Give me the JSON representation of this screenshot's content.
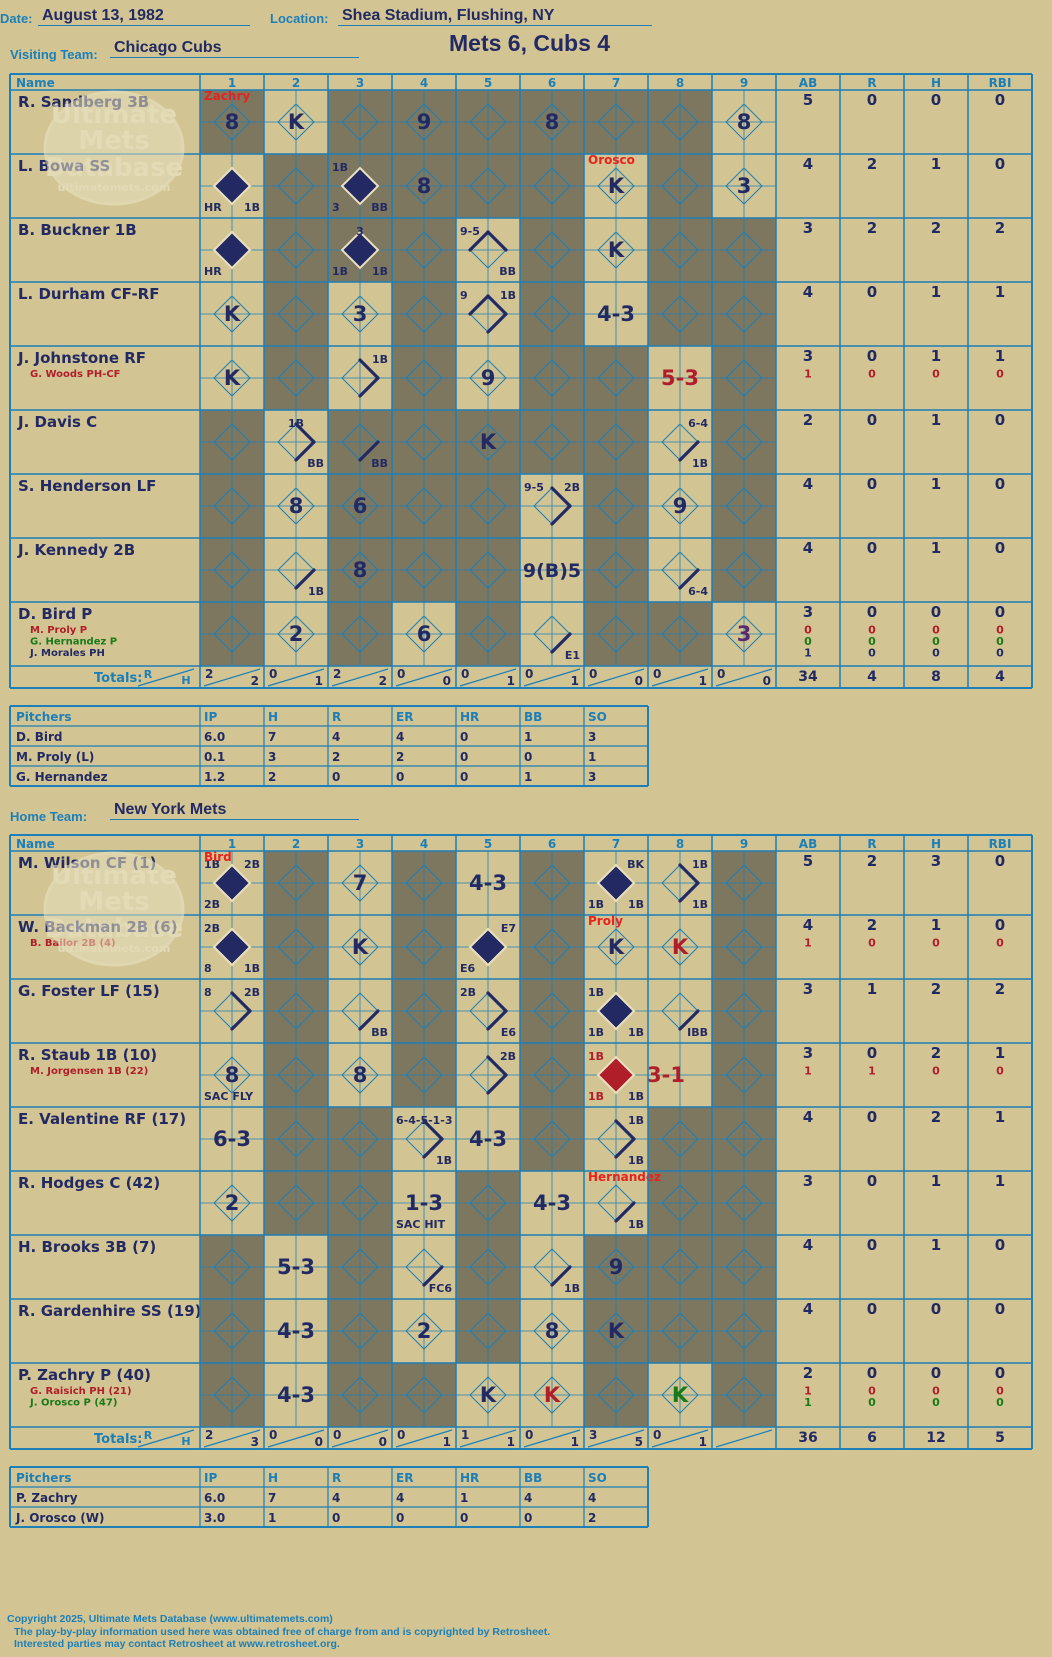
{
  "header": {
    "date_label": "Date:",
    "date": "August 13, 1982",
    "location_label": "Location:",
    "location": "Shea Stadium, Flushing, NY",
    "visiting_label": "Visiting Team:",
    "visiting_team": "Chicago Cubs",
    "home_label": "Home Team:",
    "home_team": "New York Mets",
    "title": "Mets 6, Cubs 4"
  },
  "watermark": {
    "line1": "Ultimate",
    "line2": "Mets",
    "line3": "Database",
    "url": "ultimatemets.com"
  },
  "colors": {
    "background": "#d2c593",
    "grid": "#1c7fb8",
    "shade": "#7d775f",
    "ink": "#232a63",
    "red": "#b01e2a",
    "green": "#197a19",
    "note": "#e8221c"
  },
  "columns": {
    "name": "Name",
    "innings": [
      "1",
      "2",
      "3",
      "4",
      "5",
      "6",
      "7",
      "8",
      "9"
    ],
    "stats": [
      "AB",
      "R",
      "H",
      "RBI"
    ],
    "totals_label": "Totals:",
    "r": "R",
    "h": "H"
  },
  "pitch_columns": [
    "Pitchers",
    "IP",
    "H",
    "R",
    "ER",
    "HR",
    "BB",
    "SO"
  ],
  "visitors": {
    "shade": [
      [
        1,
        3,
        4,
        5,
        6,
        7,
        8
      ],
      [
        2,
        3,
        4,
        5,
        6,
        8
      ],
      [
        2,
        3,
        4,
        6,
        8,
        9
      ],
      [
        2,
        4,
        6,
        8,
        9
      ],
      [
        2,
        4,
        6,
        7,
        9
      ],
      [
        1,
        3,
        4,
        5,
        6,
        7,
        9
      ],
      [
        1,
        3,
        4,
        5,
        7,
        9
      ],
      [
        1,
        3,
        4,
        5,
        7,
        9
      ],
      [
        1,
        3,
        5,
        7,
        8
      ]
    ],
    "rows": [
      {
        "name": "R. Sandberg 3B",
        "subs": [],
        "stats": [
          [
            "5",
            "0",
            "0",
            "0"
          ]
        ],
        "cells": [
          {
            "inn": 1,
            "c": "8",
            "note": "Zachry"
          },
          {
            "inn": 2,
            "c": "K"
          },
          {
            "inn": 4,
            "c": "9"
          },
          {
            "inn": 6,
            "c": "8"
          },
          {
            "inn": 9,
            "c": "8"
          }
        ]
      },
      {
        "name": "L. Bowa SS",
        "subs": [],
        "stats": [
          [
            "4",
            "2",
            "1",
            "0"
          ]
        ],
        "cells": [
          {
            "inn": 1,
            "d": "full",
            "bl": "HR",
            "br": "1B"
          },
          {
            "inn": 3,
            "d": "full",
            "tl": "1B",
            "bl": "3",
            "br": "BB"
          },
          {
            "inn": 4,
            "c": "8"
          },
          {
            "inn": 7,
            "c": "K",
            "note": "Orosco"
          },
          {
            "inn": 9,
            "c": "3"
          }
        ]
      },
      {
        "name": "B. Buckner 1B",
        "subs": [],
        "stats": [
          [
            "3",
            "2",
            "2",
            "2"
          ]
        ],
        "cells": [
          {
            "inn": 1,
            "d": "full",
            "bl": "HR"
          },
          {
            "inn": 3,
            "d": "full",
            "tc": "3",
            "bl": "1B",
            "br": "1B"
          },
          {
            "inn": 5,
            "d": "23",
            "tl": "9-5",
            "br": "BB"
          },
          {
            "inn": 7,
            "c": "K"
          }
        ]
      },
      {
        "name": "L. Durham CF-RF",
        "subs": [],
        "stats": [
          [
            "4",
            "0",
            "1",
            "1"
          ]
        ],
        "cells": [
          {
            "inn": 1,
            "c": "K"
          },
          {
            "inn": 3,
            "c": "3"
          },
          {
            "inn": 5,
            "d": "123",
            "tl": "9",
            "tr": "1B"
          },
          {
            "inn": 7,
            "c": "4-3"
          }
        ]
      },
      {
        "name": "J. Johnstone RF",
        "subs": [
          {
            "t": "G. Woods PH-CF",
            "col": "red"
          }
        ],
        "stats": [
          [
            "3",
            "0",
            "1",
            "1"
          ],
          [
            "1",
            "0",
            "0",
            "0",
            "red"
          ]
        ],
        "cells": [
          {
            "inn": 1,
            "c": "K"
          },
          {
            "inn": 3,
            "d": "12",
            "tr": "1B"
          },
          {
            "inn": 5,
            "c": "9"
          },
          {
            "inn": 8,
            "c": "5-3",
            "col": "red"
          }
        ]
      },
      {
        "name": "J. Davis C",
        "subs": [],
        "stats": [
          [
            "2",
            "0",
            "1",
            "0"
          ]
        ],
        "cells": [
          {
            "inn": 2,
            "d": "12",
            "tc": "1B",
            "br": "BB"
          },
          {
            "inn": 3,
            "d": "1",
            "br": "BB"
          },
          {
            "inn": 5,
            "c": "K"
          },
          {
            "inn": 8,
            "d": "1",
            "tr": "6-4",
            "br": "1B"
          }
        ]
      },
      {
        "name": "S. Henderson LF",
        "subs": [],
        "stats": [
          [
            "4",
            "0",
            "1",
            "0"
          ]
        ],
        "cells": [
          {
            "inn": 2,
            "c": "8"
          },
          {
            "inn": 3,
            "c": "6"
          },
          {
            "inn": 6,
            "d": "12",
            "tl": "9-5",
            "tr": "2B"
          },
          {
            "inn": 8,
            "c": "9"
          }
        ]
      },
      {
        "name": "J. Kennedy 2B",
        "subs": [],
        "stats": [
          [
            "4",
            "0",
            "1",
            "0"
          ]
        ],
        "cells": [
          {
            "inn": 2,
            "d": "1",
            "br": "1B"
          },
          {
            "inn": 3,
            "c": "8"
          },
          {
            "inn": 6,
            "c": "9(B)5"
          },
          {
            "inn": 8,
            "d": "1",
            "br": "6-4"
          }
        ]
      },
      {
        "name": "D. Bird P",
        "subs": [
          {
            "t": "M. Proly P",
            "col": "red"
          },
          {
            "t": "G. Hernandez P",
            "col": "green"
          },
          {
            "t": "J. Morales PH",
            "col": "ink"
          }
        ],
        "stats": [
          [
            "3",
            "0",
            "0",
            "0"
          ],
          [
            "0",
            "0",
            "0",
            "0",
            "red"
          ],
          [
            "0",
            "0",
            "0",
            "0",
            "green"
          ],
          [
            "1",
            "0",
            "0",
            "0",
            "ink"
          ]
        ],
        "cells": [
          {
            "inn": 2,
            "c": "2"
          },
          {
            "inn": 4,
            "c": "6"
          },
          {
            "inn": 6,
            "d": "1",
            "br": "E1"
          },
          {
            "inn": 9,
            "c": "3",
            "col": "purple"
          }
        ]
      }
    ],
    "totals": [
      [
        "2",
        "2"
      ],
      [
        "0",
        "1"
      ],
      [
        "2",
        "2"
      ],
      [
        "0",
        "0"
      ],
      [
        "0",
        "1"
      ],
      [
        "0",
        "1"
      ],
      [
        "0",
        "0"
      ],
      [
        "0",
        "1"
      ],
      [
        "0",
        "0"
      ]
    ],
    "total_stats": [
      "34",
      "4",
      "8",
      "4"
    ],
    "pitchers": [
      [
        "D. Bird",
        "6.0",
        "7",
        "4",
        "4",
        "0",
        "1",
        "3"
      ],
      [
        "M. Proly (L)",
        "0.1",
        "3",
        "2",
        "2",
        "0",
        "0",
        "1"
      ],
      [
        "G. Hernandez",
        "1.2",
        "2",
        "0",
        "0",
        "0",
        "1",
        "3"
      ]
    ]
  },
  "home": {
    "shade": [
      [
        2,
        4,
        6,
        9
      ],
      [
        2,
        4,
        6,
        9
      ],
      [
        2,
        4,
        6,
        9
      ],
      [
        2,
        4,
        6,
        9
      ],
      [
        2,
        3,
        6,
        8,
        9
      ],
      [
        2,
        3,
        5,
        8,
        9
      ],
      [
        1,
        3,
        5,
        7,
        8,
        9
      ],
      [
        1,
        3,
        5,
        7,
        8,
        9
      ],
      [
        1,
        3,
        4,
        7,
        9
      ]
    ],
    "rows": [
      {
        "name": "M. Wilson CF (1)",
        "subs": [],
        "stats": [
          [
            "5",
            "2",
            "3",
            "0"
          ]
        ],
        "cells": [
          {
            "inn": 1,
            "d": "full",
            "tl": "1B",
            "tr": "2B",
            "bl": "2B",
            "note": "Bird"
          },
          {
            "inn": 3,
            "c": "7"
          },
          {
            "inn": 5,
            "c": "4-3"
          },
          {
            "inn": 7,
            "d": "full",
            "tr": "BK",
            "bl": "1B",
            "br": "1B"
          },
          {
            "inn": 8,
            "d": "12",
            "tr": "1B",
            "br": "1B"
          }
        ]
      },
      {
        "name": "W. Backman 2B (6)",
        "subs": [
          {
            "t": "B. Bailor 2B (4)",
            "col": "red"
          }
        ],
        "stats": [
          [
            "4",
            "2",
            "1",
            "0"
          ],
          [
            "1",
            "0",
            "0",
            "0",
            "red"
          ]
        ],
        "cells": [
          {
            "inn": 1,
            "d": "full",
            "tl": "2B",
            "bl": "8",
            "br": "1B"
          },
          {
            "inn": 3,
            "c": "K"
          },
          {
            "inn": 5,
            "d": "full",
            "tr": "E7",
            "bl": "E6"
          },
          {
            "inn": 7,
            "c": "K",
            "note": "Proly"
          },
          {
            "inn": 8,
            "c": "K",
            "col": "red"
          }
        ]
      },
      {
        "name": "G. Foster LF (15)",
        "subs": [],
        "stats": [
          [
            "3",
            "1",
            "2",
            "2"
          ]
        ],
        "cells": [
          {
            "inn": 1,
            "d": "12",
            "tl": "8",
            "tr": "2B"
          },
          {
            "inn": 3,
            "d": "1",
            "br": "BB"
          },
          {
            "inn": 5,
            "d": "12",
            "tl": "2B",
            "br": "E6"
          },
          {
            "inn": 7,
            "d": "full",
            "tl": "1B",
            "bl": "1B",
            "br": "1B"
          },
          {
            "inn": 8,
            "d": "1",
            "br": "IBB"
          }
        ]
      },
      {
        "name": "R. Staub 1B (10)",
        "subs": [
          {
            "t": "M. Jorgensen 1B (22)",
            "col": "red"
          }
        ],
        "stats": [
          [
            "3",
            "0",
            "2",
            "1"
          ],
          [
            "1",
            "1",
            "0",
            "0",
            "red"
          ]
        ],
        "cells": [
          {
            "inn": 1,
            "c": "8",
            "bl": "SAC FLY"
          },
          {
            "inn": 3,
            "c": "8"
          },
          {
            "inn": 5,
            "d": "12",
            "tr": "2B"
          },
          {
            "inn": 7,
            "d": "full",
            "fill": "red",
            "tl": "1B",
            "tlc": "red",
            "bl": "1B",
            "blc": "red",
            "br": "1B"
          },
          {
            "inn": 8,
            "c": "3-1",
            "col": "red",
            "x": -14
          }
        ]
      },
      {
        "name": "E. Valentine RF (17)",
        "subs": [],
        "stats": [
          [
            "4",
            "0",
            "2",
            "1"
          ]
        ],
        "cells": [
          {
            "inn": 1,
            "c": "6-3"
          },
          {
            "inn": 4,
            "d": "12",
            "tl": "6-4-5-1-3",
            "br": "1B"
          },
          {
            "inn": 5,
            "c": "4-3"
          },
          {
            "inn": 7,
            "d": "12",
            "tr": "1B",
            "br": "1B"
          }
        ]
      },
      {
        "name": "R. Hodges C (42)",
        "subs": [],
        "stats": [
          [
            "3",
            "0",
            "1",
            "1"
          ]
        ],
        "cells": [
          {
            "inn": 1,
            "c": "2"
          },
          {
            "inn": 4,
            "c": "1-3",
            "bl": "SAC HIT"
          },
          {
            "inn": 6,
            "c": "4-3"
          },
          {
            "inn": 7,
            "d": "1",
            "br": "1B",
            "note": "Hernandez"
          }
        ]
      },
      {
        "name": "H. Brooks 3B (7)",
        "subs": [],
        "stats": [
          [
            "4",
            "0",
            "1",
            "0"
          ]
        ],
        "cells": [
          {
            "inn": 2,
            "c": "5-3"
          },
          {
            "inn": 4,
            "d": "1",
            "br": "FC6"
          },
          {
            "inn": 6,
            "d": "1",
            "br": "1B"
          },
          {
            "inn": 7,
            "c": "9"
          }
        ]
      },
      {
        "name": "R. Gardenhire SS (19)",
        "subs": [],
        "stats": [
          [
            "4",
            "0",
            "0",
            "0"
          ]
        ],
        "cells": [
          {
            "inn": 2,
            "c": "4-3"
          },
          {
            "inn": 4,
            "c": "2"
          },
          {
            "inn": 6,
            "c": "8"
          },
          {
            "inn": 7,
            "c": "K"
          }
        ]
      },
      {
        "name": "P. Zachry P (40)",
        "subs": [
          {
            "t": "G. Raisich PH (21)",
            "col": "red"
          },
          {
            "t": "J. Orosco P (47)",
            "col": "green"
          }
        ],
        "stats": [
          [
            "2",
            "0",
            "0",
            "0"
          ],
          [
            "1",
            "0",
            "0",
            "0",
            "red"
          ],
          [
            "1",
            "0",
            "0",
            "0",
            "green"
          ]
        ],
        "cells": [
          {
            "inn": 2,
            "c": "4-3"
          },
          {
            "inn": 5,
            "c": "K"
          },
          {
            "inn": 6,
            "c": "K",
            "col": "red"
          },
          {
            "inn": 8,
            "c": "K",
            "col": "green"
          }
        ]
      }
    ],
    "totals": [
      [
        "2",
        "3"
      ],
      [
        "0",
        "0"
      ],
      [
        "0",
        "0"
      ],
      [
        "0",
        "1"
      ],
      [
        "1",
        "1"
      ],
      [
        "0",
        "1"
      ],
      [
        "3",
        "5"
      ],
      [
        "0",
        "1"
      ],
      [
        "",
        ""
      ]
    ],
    "total_stats": [
      "36",
      "6",
      "12",
      "5"
    ],
    "pitchers": [
      [
        "P. Zachry",
        "6.0",
        "7",
        "4",
        "4",
        "1",
        "4",
        "4"
      ],
      [
        "J. Orosco (W)",
        "3.0",
        "1",
        "0",
        "0",
        "0",
        "0",
        "2"
      ]
    ]
  },
  "footer": {
    "line1": "Copyright 2025, Ultimate Mets Database (www.ultimatemets.com)",
    "line2": "The play-by-play information used here was obtained free of charge from and is copyrighted by Retrosheet.",
    "line3": "Interested parties may contact Retrosheet at www.retrosheet.org."
  }
}
